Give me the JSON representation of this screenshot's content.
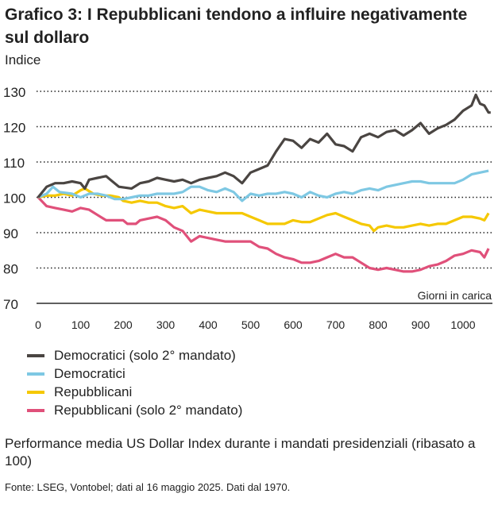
{
  "chart_data": {
    "type": "line",
    "title": "Grafico 3: I Repubblicani tendono a influire negativamente sul dollaro",
    "ylabel": "Indice",
    "xlabel": "Giorni in carica",
    "ylim": [
      70,
      130
    ],
    "xlim": [
      0,
      1065
    ],
    "yticks": [
      70,
      80,
      90,
      100,
      110,
      120,
      130
    ],
    "xticks": [
      0,
      100,
      200,
      300,
      400,
      500,
      600,
      700,
      800,
      900,
      1000
    ],
    "grid": "horizontal dotted",
    "legend": "bottom",
    "series": [
      {
        "name": "Democratici (solo 2° mandato)",
        "color": "#4a4542",
        "x": [
          0,
          20,
          40,
          60,
          80,
          100,
          110,
          120,
          140,
          160,
          170,
          190,
          220,
          240,
          260,
          280,
          300,
          320,
          340,
          360,
          380,
          400,
          420,
          440,
          460,
          480,
          500,
          520,
          540,
          560,
          580,
          600,
          620,
          640,
          660,
          680,
          700,
          720,
          740,
          760,
          780,
          800,
          820,
          840,
          860,
          880,
          900,
          920,
          940,
          960,
          980,
          1000,
          1020,
          1030,
          1040,
          1050,
          1060,
          1065
        ],
        "y": [
          100,
          103,
          104,
          104,
          104.5,
          104,
          102.5,
          105,
          105.5,
          106,
          105,
          103,
          102.5,
          104,
          104.5,
          105.5,
          105,
          104.5,
          105,
          104,
          105,
          105.5,
          106,
          107,
          106,
          104,
          107,
          108,
          109,
          113,
          116.5,
          116,
          114,
          116.5,
          115.5,
          118,
          115,
          114.5,
          113,
          117,
          118,
          117,
          118.5,
          119,
          117.5,
          119,
          121,
          118,
          119.5,
          120.5,
          122,
          124.5,
          126,
          129,
          126.5,
          126,
          124,
          124
        ]
      },
      {
        "name": "Democratici",
        "color": "#7ec8e3",
        "x": [
          0,
          20,
          35,
          50,
          80,
          100,
          120,
          140,
          160,
          180,
          200,
          220,
          240,
          260,
          280,
          300,
          320,
          340,
          360,
          380,
          400,
          420,
          440,
          460,
          480,
          500,
          520,
          540,
          560,
          580,
          600,
          620,
          640,
          660,
          680,
          700,
          720,
          740,
          760,
          780,
          800,
          820,
          840,
          860,
          880,
          900,
          920,
          940,
          960,
          980,
          1000,
          1020,
          1040,
          1060
        ],
        "y": [
          100,
          101,
          103,
          101.5,
          101,
          100,
          101,
          101,
          100.5,
          99.5,
          99.5,
          100,
          100.5,
          100.5,
          101,
          101,
          101,
          101.5,
          103,
          103,
          102,
          101.5,
          102.5,
          101.5,
          99,
          101,
          100.5,
          101,
          101,
          101.5,
          101,
          100,
          101.5,
          100.5,
          100,
          101,
          101.5,
          101,
          102,
          102.5,
          102,
          103,
          103.5,
          104,
          104.5,
          104.5,
          104,
          104,
          104,
          104,
          105,
          106.5,
          107,
          107.5
        ]
      },
      {
        "name": "Repubblicani",
        "color": "#f5c800",
        "x": [
          0,
          20,
          40,
          60,
          80,
          100,
          110,
          130,
          150,
          170,
          190,
          200,
          220,
          240,
          260,
          280,
          300,
          320,
          340,
          360,
          380,
          400,
          420,
          440,
          460,
          480,
          500,
          520,
          540,
          560,
          580,
          600,
          620,
          640,
          660,
          680,
          700,
          720,
          740,
          760,
          780,
          790,
          800,
          820,
          840,
          860,
          880,
          900,
          920,
          940,
          960,
          980,
          1000,
          1020,
          1040,
          1050,
          1060
        ],
        "y": [
          100,
          100.5,
          100.5,
          101,
          100.5,
          102,
          102.5,
          101,
          100.5,
          100.5,
          100,
          99,
          98.5,
          99,
          98.5,
          98.5,
          97.5,
          97,
          97.5,
          95.5,
          96.5,
          96,
          95.5,
          95.5,
          95.5,
          95.5,
          94.5,
          93.5,
          92.5,
          92.5,
          92.5,
          93.5,
          93,
          93,
          94,
          95,
          95.5,
          94.5,
          93.5,
          92.5,
          92,
          90.5,
          91.5,
          92,
          91.5,
          91.5,
          92,
          92.5,
          92,
          92.5,
          92.5,
          93.5,
          94.5,
          94.5,
          94,
          93.5,
          95.5
        ]
      },
      {
        "name": "Repubblicani (solo 2° mandato)",
        "color": "#e0507a",
        "x": [
          0,
          20,
          40,
          60,
          80,
          100,
          120,
          140,
          160,
          180,
          200,
          210,
          230,
          240,
          260,
          280,
          300,
          320,
          340,
          360,
          380,
          400,
          420,
          440,
          460,
          480,
          500,
          520,
          540,
          560,
          580,
          600,
          620,
          640,
          660,
          680,
          700,
          720,
          740,
          760,
          780,
          800,
          820,
          840,
          860,
          880,
          900,
          920,
          940,
          960,
          980,
          1000,
          1020,
          1040,
          1050,
          1060
        ],
        "y": [
          100,
          97.5,
          97,
          96.5,
          96,
          97,
          96.5,
          95,
          93.5,
          93.5,
          93.5,
          92.5,
          92.5,
          93.5,
          94,
          94.5,
          93.5,
          91.5,
          90.5,
          87.5,
          89,
          88.5,
          88,
          87.5,
          87.5,
          87.5,
          87.5,
          86,
          85.5,
          84,
          83,
          82.5,
          81.5,
          81.5,
          82,
          83,
          84,
          83,
          83,
          81.5,
          80,
          79.5,
          80,
          79.5,
          79,
          79,
          79.5,
          80.5,
          81,
          82,
          83.5,
          84,
          85,
          84.5,
          83,
          85.5
        ]
      }
    ]
  },
  "subtitle": "Performance media US Dollar Index durante i mandati presidenziali (ribasato a 100)",
  "source": "Fonte: LSEG, Vontobel; dati al 16 maggio 2025. Dati dal 1970."
}
